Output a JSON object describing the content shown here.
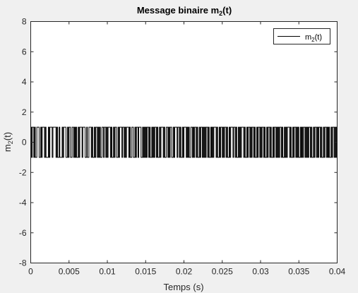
{
  "chart_data": {
    "type": "line",
    "title": "Message binaire m",
    "title_sub": "2",
    "title_suffix": "(t)",
    "xlabel": "Temps (s)",
    "ylabel": "m",
    "ylabel_sub": "2",
    "ylabel_suffix": "(t)",
    "xlim": [
      0,
      0.04
    ],
    "ylim": [
      -8,
      8
    ],
    "x_ticks": [
      "0",
      "0.005",
      "0.01",
      "0.015",
      "0.02",
      "0.025",
      "0.03",
      "0.035",
      "0.04"
    ],
    "y_ticks": [
      "-8",
      "-6",
      "-4",
      "-2",
      "0",
      "2",
      "4",
      "6",
      "8"
    ],
    "grid": false,
    "legend_position": "top-right",
    "series": [
      {
        "name": "m",
        "name_sub": "2",
        "name_suffix": "(t)",
        "color": "#000000",
        "line_style": "step",
        "bit_duration": 0.0001,
        "bits": "1011010011100101110100010111011110100100010111001011001101010010111011100100111010010110101001101101011101001011001011101101011101001100101101110010101011010010101101001011101001101011001011101101001011101010011010110100101101010110100101011101001011010110100101110110100101011101001011010110100101101011010010110100101101010110100101011101001011010100101011010101101001011010110100101101010010110101"
      }
    ]
  }
}
